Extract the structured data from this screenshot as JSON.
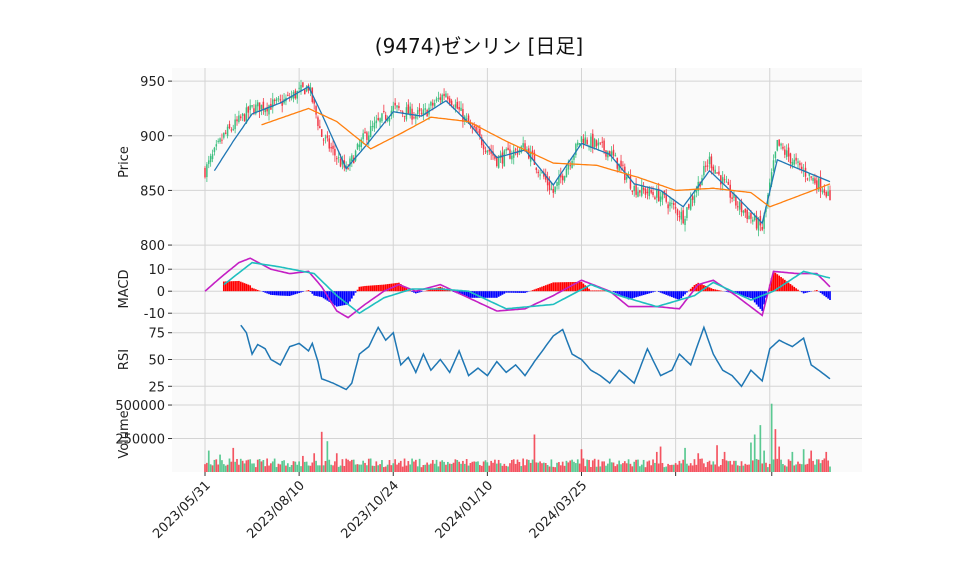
{
  "chart_data": {
    "type": "candlestick",
    "title": "(9474)ゼンリン [日足]",
    "x_tick_labels": [
      "2023/05/31",
      "2023/08/10",
      "2023/10/24",
      "2024/01/10",
      "2024/03/25"
    ],
    "colors": {
      "up": "#3dbf7f",
      "down": "#f23645",
      "ma_short": "#1f77b4",
      "ma_long": "#ff7f0e",
      "macd_line": "#c41fc4",
      "signal_line": "#1fbfbf",
      "hist_pos": "#ff0000",
      "hist_neg": "#0000ff",
      "rsi_line": "#1f77b4"
    },
    "panels": {
      "price": {
        "ylabel": "Price",
        "yticks": [
          800,
          850,
          900,
          950
        ],
        "ylim": [
          790,
          962
        ],
        "close_anchors": [
          [
            0,
            868
          ],
          [
            10,
            900
          ],
          [
            25,
            925
          ],
          [
            40,
            930
          ],
          [
            55,
            945
          ],
          [
            62,
            900
          ],
          [
            75,
            868
          ],
          [
            85,
            900
          ],
          [
            100,
            925
          ],
          [
            115,
            918
          ],
          [
            128,
            940
          ],
          [
            140,
            910
          ],
          [
            155,
            878
          ],
          [
            170,
            890
          ],
          [
            185,
            848
          ],
          [
            200,
            898
          ],
          [
            215,
            885
          ],
          [
            228,
            852
          ],
          [
            242,
            845
          ],
          [
            254,
            826
          ],
          [
            268,
            878
          ],
          [
            282,
            838
          ],
          [
            296,
            815
          ],
          [
            304,
            892
          ],
          [
            315,
            872
          ],
          [
            330,
            850
          ],
          [
            332,
            838
          ]
        ],
        "ma_short_anchors": [
          [
            5,
            868
          ],
          [
            15,
            895
          ],
          [
            25,
            920
          ],
          [
            40,
            930
          ],
          [
            55,
            945
          ],
          [
            62,
            920
          ],
          [
            75,
            870
          ],
          [
            85,
            890
          ],
          [
            100,
            922
          ],
          [
            115,
            918
          ],
          [
            128,
            932
          ],
          [
            140,
            912
          ],
          [
            155,
            880
          ],
          [
            170,
            887
          ],
          [
            185,
            855
          ],
          [
            200,
            893
          ],
          [
            215,
            883
          ],
          [
            228,
            856
          ],
          [
            242,
            850
          ],
          [
            254,
            835
          ],
          [
            268,
            868
          ],
          [
            282,
            845
          ],
          [
            296,
            820
          ],
          [
            304,
            878
          ],
          [
            315,
            870
          ],
          [
            332,
            858
          ]
        ],
        "ma_long_anchors": [
          [
            30,
            910
          ],
          [
            55,
            925
          ],
          [
            70,
            913
          ],
          [
            88,
            888
          ],
          [
            105,
            903
          ],
          [
            120,
            917
          ],
          [
            140,
            913
          ],
          [
            160,
            895
          ],
          [
            185,
            875
          ],
          [
            208,
            873
          ],
          [
            230,
            862
          ],
          [
            250,
            850
          ],
          [
            270,
            852
          ],
          [
            290,
            848
          ],
          [
            300,
            835
          ],
          [
            320,
            848
          ],
          [
            332,
            856
          ]
        ]
      },
      "macd": {
        "ylabel": "MACD",
        "yticks": [
          -10,
          0,
          10
        ],
        "ylim": [
          -14,
          16
        ],
        "macd_anchors": [
          [
            0,
            0
          ],
          [
            8,
            6
          ],
          [
            18,
            13
          ],
          [
            24,
            15
          ],
          [
            35,
            10
          ],
          [
            45,
            8
          ],
          [
            55,
            9
          ],
          [
            62,
            2
          ],
          [
            70,
            -9
          ],
          [
            76,
            -12
          ],
          [
            85,
            -6
          ],
          [
            95,
            0
          ],
          [
            103,
            3
          ],
          [
            112,
            0
          ],
          [
            125,
            3
          ],
          [
            140,
            -3
          ],
          [
            155,
            -9
          ],
          [
            170,
            -8
          ],
          [
            185,
            -2
          ],
          [
            200,
            5
          ],
          [
            215,
            0
          ],
          [
            225,
            -7
          ],
          [
            240,
            -7
          ],
          [
            252,
            -8
          ],
          [
            262,
            3
          ],
          [
            270,
            5
          ],
          [
            282,
            -2
          ],
          [
            296,
            -11
          ],
          [
            302,
            9
          ],
          [
            315,
            8
          ],
          [
            325,
            8
          ],
          [
            332,
            2
          ]
        ],
        "signal_anchors": [
          [
            10,
            3
          ],
          [
            25,
            13
          ],
          [
            40,
            11
          ],
          [
            58,
            8
          ],
          [
            70,
            -2
          ],
          [
            82,
            -10
          ],
          [
            95,
            -3
          ],
          [
            110,
            1
          ],
          [
            125,
            1
          ],
          [
            140,
            0
          ],
          [
            160,
            -8
          ],
          [
            185,
            -6
          ],
          [
            205,
            3
          ],
          [
            220,
            -2
          ],
          [
            240,
            -7
          ],
          [
            260,
            -2
          ],
          [
            270,
            4
          ],
          [
            290,
            -4
          ],
          [
            302,
            0
          ],
          [
            318,
            9
          ],
          [
            332,
            6
          ]
        ]
      },
      "rsi": {
        "ylabel": "RSI",
        "yticks": [
          25,
          50,
          75
        ],
        "ylim": [
          15,
          85
        ],
        "start_index": 19,
        "anchors": [
          [
            19,
            82
          ],
          [
            22,
            75
          ],
          [
            25,
            55
          ],
          [
            28,
            64
          ],
          [
            32,
            60
          ],
          [
            35,
            50
          ],
          [
            40,
            45
          ],
          [
            45,
            62
          ],
          [
            50,
            65
          ],
          [
            55,
            58
          ],
          [
            57,
            65
          ],
          [
            60,
            48
          ],
          [
            62,
            32
          ],
          [
            68,
            28
          ],
          [
            75,
            22
          ],
          [
            78,
            28
          ],
          [
            82,
            55
          ],
          [
            87,
            62
          ],
          [
            92,
            80
          ],
          [
            96,
            68
          ],
          [
            100,
            75
          ],
          [
            104,
            45
          ],
          [
            108,
            52
          ],
          [
            112,
            38
          ],
          [
            116,
            55
          ],
          [
            120,
            40
          ],
          [
            125,
            50
          ],
          [
            130,
            38
          ],
          [
            135,
            58
          ],
          [
            140,
            35
          ],
          [
            145,
            42
          ],
          [
            150,
            35
          ],
          [
            155,
            48
          ],
          [
            160,
            38
          ],
          [
            165,
            45
          ],
          [
            170,
            35
          ],
          [
            175,
            48
          ],
          [
            180,
            60
          ],
          [
            185,
            72
          ],
          [
            190,
            78
          ],
          [
            195,
            55
          ],
          [
            200,
            50
          ],
          [
            205,
            40
          ],
          [
            210,
            35
          ],
          [
            215,
            28
          ],
          [
            220,
            40
          ],
          [
            228,
            28
          ],
          [
            235,
            60
          ],
          [
            242,
            35
          ],
          [
            248,
            40
          ],
          [
            252,
            55
          ],
          [
            258,
            45
          ],
          [
            265,
            80
          ],
          [
            270,
            55
          ],
          [
            275,
            40
          ],
          [
            280,
            35
          ],
          [
            285,
            25
          ],
          [
            290,
            40
          ],
          [
            296,
            30
          ],
          [
            300,
            60
          ],
          [
            305,
            68
          ],
          [
            312,
            62
          ],
          [
            318,
            70
          ],
          [
            322,
            45
          ],
          [
            326,
            40
          ],
          [
            332,
            32
          ]
        ]
      },
      "volume": {
        "ylabel": "Volume",
        "yticks": [
          250000,
          500000
        ],
        "ylim": [
          0,
          560000
        ],
        "baseline": 60000,
        "spikes": [
          [
            2,
            160000
          ],
          [
            8,
            130000
          ],
          [
            15,
            180000
          ],
          [
            52,
            120000
          ],
          [
            58,
            140000
          ],
          [
            62,
            300000
          ],
          [
            65,
            230000
          ],
          [
            70,
            140000
          ],
          [
            175,
            280000
          ],
          [
            200,
            170000
          ],
          [
            240,
            150000
          ],
          [
            242,
            190000
          ],
          [
            255,
            180000
          ],
          [
            262,
            140000
          ],
          [
            272,
            200000
          ],
          [
            276,
            150000
          ],
          [
            290,
            220000
          ],
          [
            292,
            280000
          ],
          [
            295,
            350000
          ],
          [
            297,
            160000
          ],
          [
            301,
            510000
          ],
          [
            303,
            320000
          ],
          [
            305,
            190000
          ],
          [
            312,
            150000
          ],
          [
            318,
            170000
          ],
          [
            322,
            160000
          ],
          [
            330,
            150000
          ]
        ]
      }
    }
  }
}
